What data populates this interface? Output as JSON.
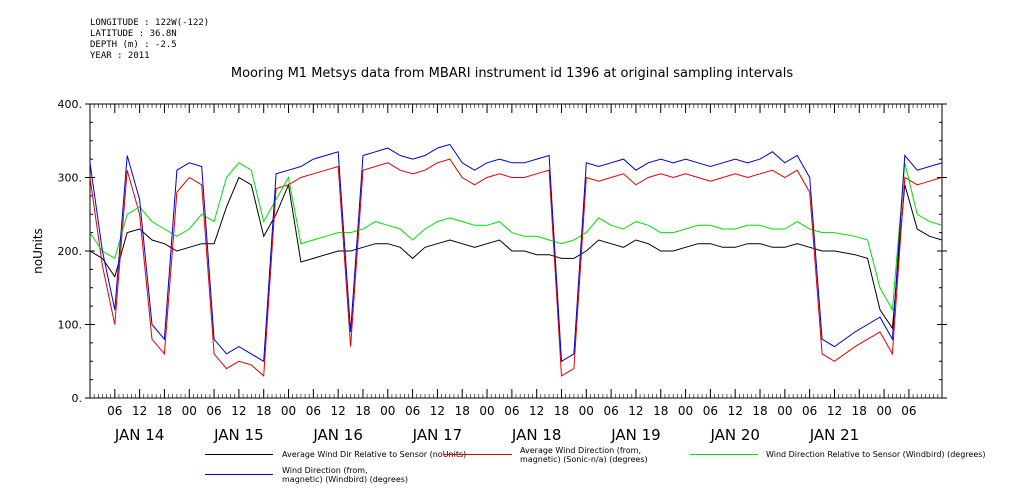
{
  "meta": {
    "longitude": "LONGITUDE : 122W(-122)",
    "latitude": "LATITUDE : 36.8N",
    "depth": "DEPTH (m) : -2.5",
    "year": "YEAR : 2011"
  },
  "colors": {
    "black": "#000000",
    "red": "#e00000",
    "green": "#00e000",
    "blue": "#0000d0"
  },
  "chart_data": {
    "type": "line",
    "title": "Mooring M1 Metsys data from MBARI instrument id 1396 at original sampling intervals",
    "ylabel": "noUnits",
    "xlabel": "",
    "ylim": [
      0,
      400
    ],
    "yticks": [
      "0.",
      "100.",
      "200.",
      "300.",
      "400."
    ],
    "xlim_hours": [
      0,
      206
    ],
    "x_hour_ticks": [
      "06",
      "12",
      "18",
      "00",
      "06",
      "12",
      "18",
      "00",
      "06",
      "12",
      "18",
      "00",
      "06",
      "12",
      "18",
      "00",
      "06",
      "12",
      "18",
      "00",
      "06",
      "12",
      "18",
      "00",
      "06",
      "12",
      "18",
      "00",
      "06",
      "12",
      "18",
      "00",
      "06"
    ],
    "day_labels": [
      "JAN 14",
      "JAN 15",
      "JAN 16",
      "JAN 17",
      "JAN 18",
      "JAN 19",
      "JAN 20",
      "JAN 21"
    ],
    "grid": false,
    "legend_position": "bottom",
    "x_unit": "hours since 2011-01-14 00:00",
    "series": [
      {
        "name": "Average Wind Dir Relative to Sensor (noUnits)",
        "color": "#000000",
        "x": [
          0,
          3,
          6,
          9,
          12,
          15,
          18,
          21,
          24,
          27,
          30,
          33,
          36,
          39,
          42,
          45,
          48,
          51,
          54,
          57,
          60,
          63,
          66,
          69,
          72,
          75,
          78,
          81,
          84,
          87,
          90,
          93,
          96,
          99,
          102,
          105,
          108,
          111,
          114,
          117,
          120,
          123,
          126,
          129,
          132,
          135,
          138,
          141,
          144,
          147,
          150,
          153,
          156,
          159,
          162,
          165,
          168,
          171,
          174,
          177,
          180,
          185,
          188,
          191,
          194,
          197,
          200,
          203,
          206
        ],
        "values": [
          200,
          190,
          165,
          225,
          230,
          215,
          210,
          200,
          205,
          210,
          210,
          260,
          300,
          290,
          220,
          250,
          290,
          185,
          190,
          195,
          200,
          200,
          205,
          210,
          210,
          205,
          190,
          205,
          210,
          215,
          210,
          205,
          210,
          215,
          200,
          200,
          195,
          195,
          190,
          190,
          200,
          215,
          210,
          205,
          215,
          210,
          200,
          200,
          205,
          210,
          210,
          205,
          205,
          210,
          210,
          205,
          205,
          210,
          205,
          200,
          200,
          195,
          190,
          120,
          95,
          290,
          230,
          220,
          215
        ]
      },
      {
        "name": "Average Wind Direction (from, magnetic) (Sonic-n/a) (degrees)",
        "color": "#e00000",
        "x": [
          0,
          3,
          6,
          9,
          12,
          15,
          18,
          21,
          24,
          27,
          30,
          33,
          36,
          39,
          42,
          45,
          48,
          51,
          54,
          57,
          60,
          63,
          66,
          69,
          72,
          75,
          78,
          81,
          84,
          87,
          90,
          93,
          96,
          99,
          102,
          105,
          108,
          111,
          114,
          117,
          120,
          123,
          126,
          129,
          132,
          135,
          138,
          141,
          144,
          147,
          150,
          153,
          156,
          159,
          162,
          165,
          168,
          171,
          174,
          177,
          180,
          185,
          188,
          191,
          194,
          197,
          200,
          203,
          206
        ],
        "values": [
          300,
          180,
          100,
          310,
          250,
          80,
          60,
          280,
          300,
          290,
          60,
          40,
          50,
          45,
          30,
          285,
          290,
          300,
          305,
          310,
          315,
          70,
          310,
          315,
          320,
          310,
          305,
          310,
          320,
          325,
          300,
          290,
          300,
          305,
          300,
          300,
          305,
          310,
          30,
          40,
          300,
          295,
          300,
          305,
          290,
          300,
          305,
          300,
          305,
          300,
          295,
          300,
          305,
          300,
          305,
          310,
          300,
          310,
          280,
          60,
          50,
          70,
          80,
          90,
          60,
          300,
          290,
          295,
          300
        ]
      },
      {
        "name": "Wind Direction Relative to Sensor (Windbird) (degrees)",
        "color": "#00e000",
        "x": [
          0,
          3,
          6,
          9,
          12,
          15,
          18,
          21,
          24,
          27,
          30,
          33,
          36,
          39,
          42,
          45,
          48,
          51,
          54,
          57,
          60,
          63,
          66,
          69,
          72,
          75,
          78,
          81,
          84,
          87,
          90,
          93,
          96,
          99,
          102,
          105,
          108,
          111,
          114,
          117,
          120,
          123,
          126,
          129,
          132,
          135,
          138,
          141,
          144,
          147,
          150,
          153,
          156,
          159,
          162,
          165,
          168,
          171,
          174,
          177,
          180,
          185,
          188,
          191,
          194,
          197,
          200,
          203,
          206
        ],
        "values": [
          225,
          200,
          190,
          250,
          260,
          240,
          230,
          220,
          230,
          250,
          240,
          300,
          320,
          310,
          240,
          270,
          300,
          210,
          215,
          220,
          225,
          225,
          230,
          240,
          235,
          230,
          215,
          230,
          240,
          245,
          240,
          235,
          235,
          240,
          225,
          220,
          220,
          215,
          210,
          215,
          225,
          245,
          235,
          230,
          240,
          235,
          225,
          225,
          230,
          235,
          235,
          230,
          230,
          235,
          235,
          230,
          230,
          240,
          230,
          225,
          225,
          220,
          215,
          150,
          120,
          320,
          250,
          240,
          235
        ]
      },
      {
        "name": "Wind Direction (from, magnetic) (Windbird) (degrees)",
        "color": "#0000d0",
        "x": [
          0,
          3,
          6,
          9,
          12,
          15,
          18,
          21,
          24,
          27,
          30,
          33,
          36,
          39,
          42,
          45,
          48,
          51,
          54,
          57,
          60,
          63,
          66,
          69,
          72,
          75,
          78,
          81,
          84,
          87,
          90,
          93,
          96,
          99,
          102,
          105,
          108,
          111,
          114,
          117,
          120,
          123,
          126,
          129,
          132,
          135,
          138,
          141,
          144,
          147,
          150,
          153,
          156,
          159,
          162,
          165,
          168,
          171,
          174,
          177,
          180,
          185,
          188,
          191,
          194,
          197,
          200,
          203,
          206
        ],
        "values": [
          320,
          200,
          120,
          330,
          270,
          100,
          80,
          310,
          320,
          315,
          80,
          60,
          70,
          60,
          50,
          305,
          310,
          315,
          325,
          330,
          335,
          90,
          330,
          335,
          340,
          330,
          325,
          330,
          340,
          345,
          320,
          310,
          320,
          325,
          320,
          320,
          325,
          330,
          50,
          60,
          320,
          315,
          320,
          325,
          310,
          320,
          325,
          320,
          325,
          320,
          315,
          320,
          325,
          320,
          325,
          335,
          320,
          330,
          300,
          80,
          70,
          90,
          100,
          110,
          80,
          330,
          310,
          315,
          320
        ]
      }
    ]
  },
  "legend": {
    "items": [
      {
        "label": "Average Wind Dir Relative to Sensor (noUnits)"
      },
      {
        "label": "Average Wind Direction (from,\nmagnetic) (Sonic-n/a) (degrees)"
      },
      {
        "label": "Wind Direction Relative to Sensor (Windbird) (degrees)"
      },
      {
        "label": "Wind Direction (from,\nmagnetic) (Windbird) (degrees)"
      }
    ]
  }
}
